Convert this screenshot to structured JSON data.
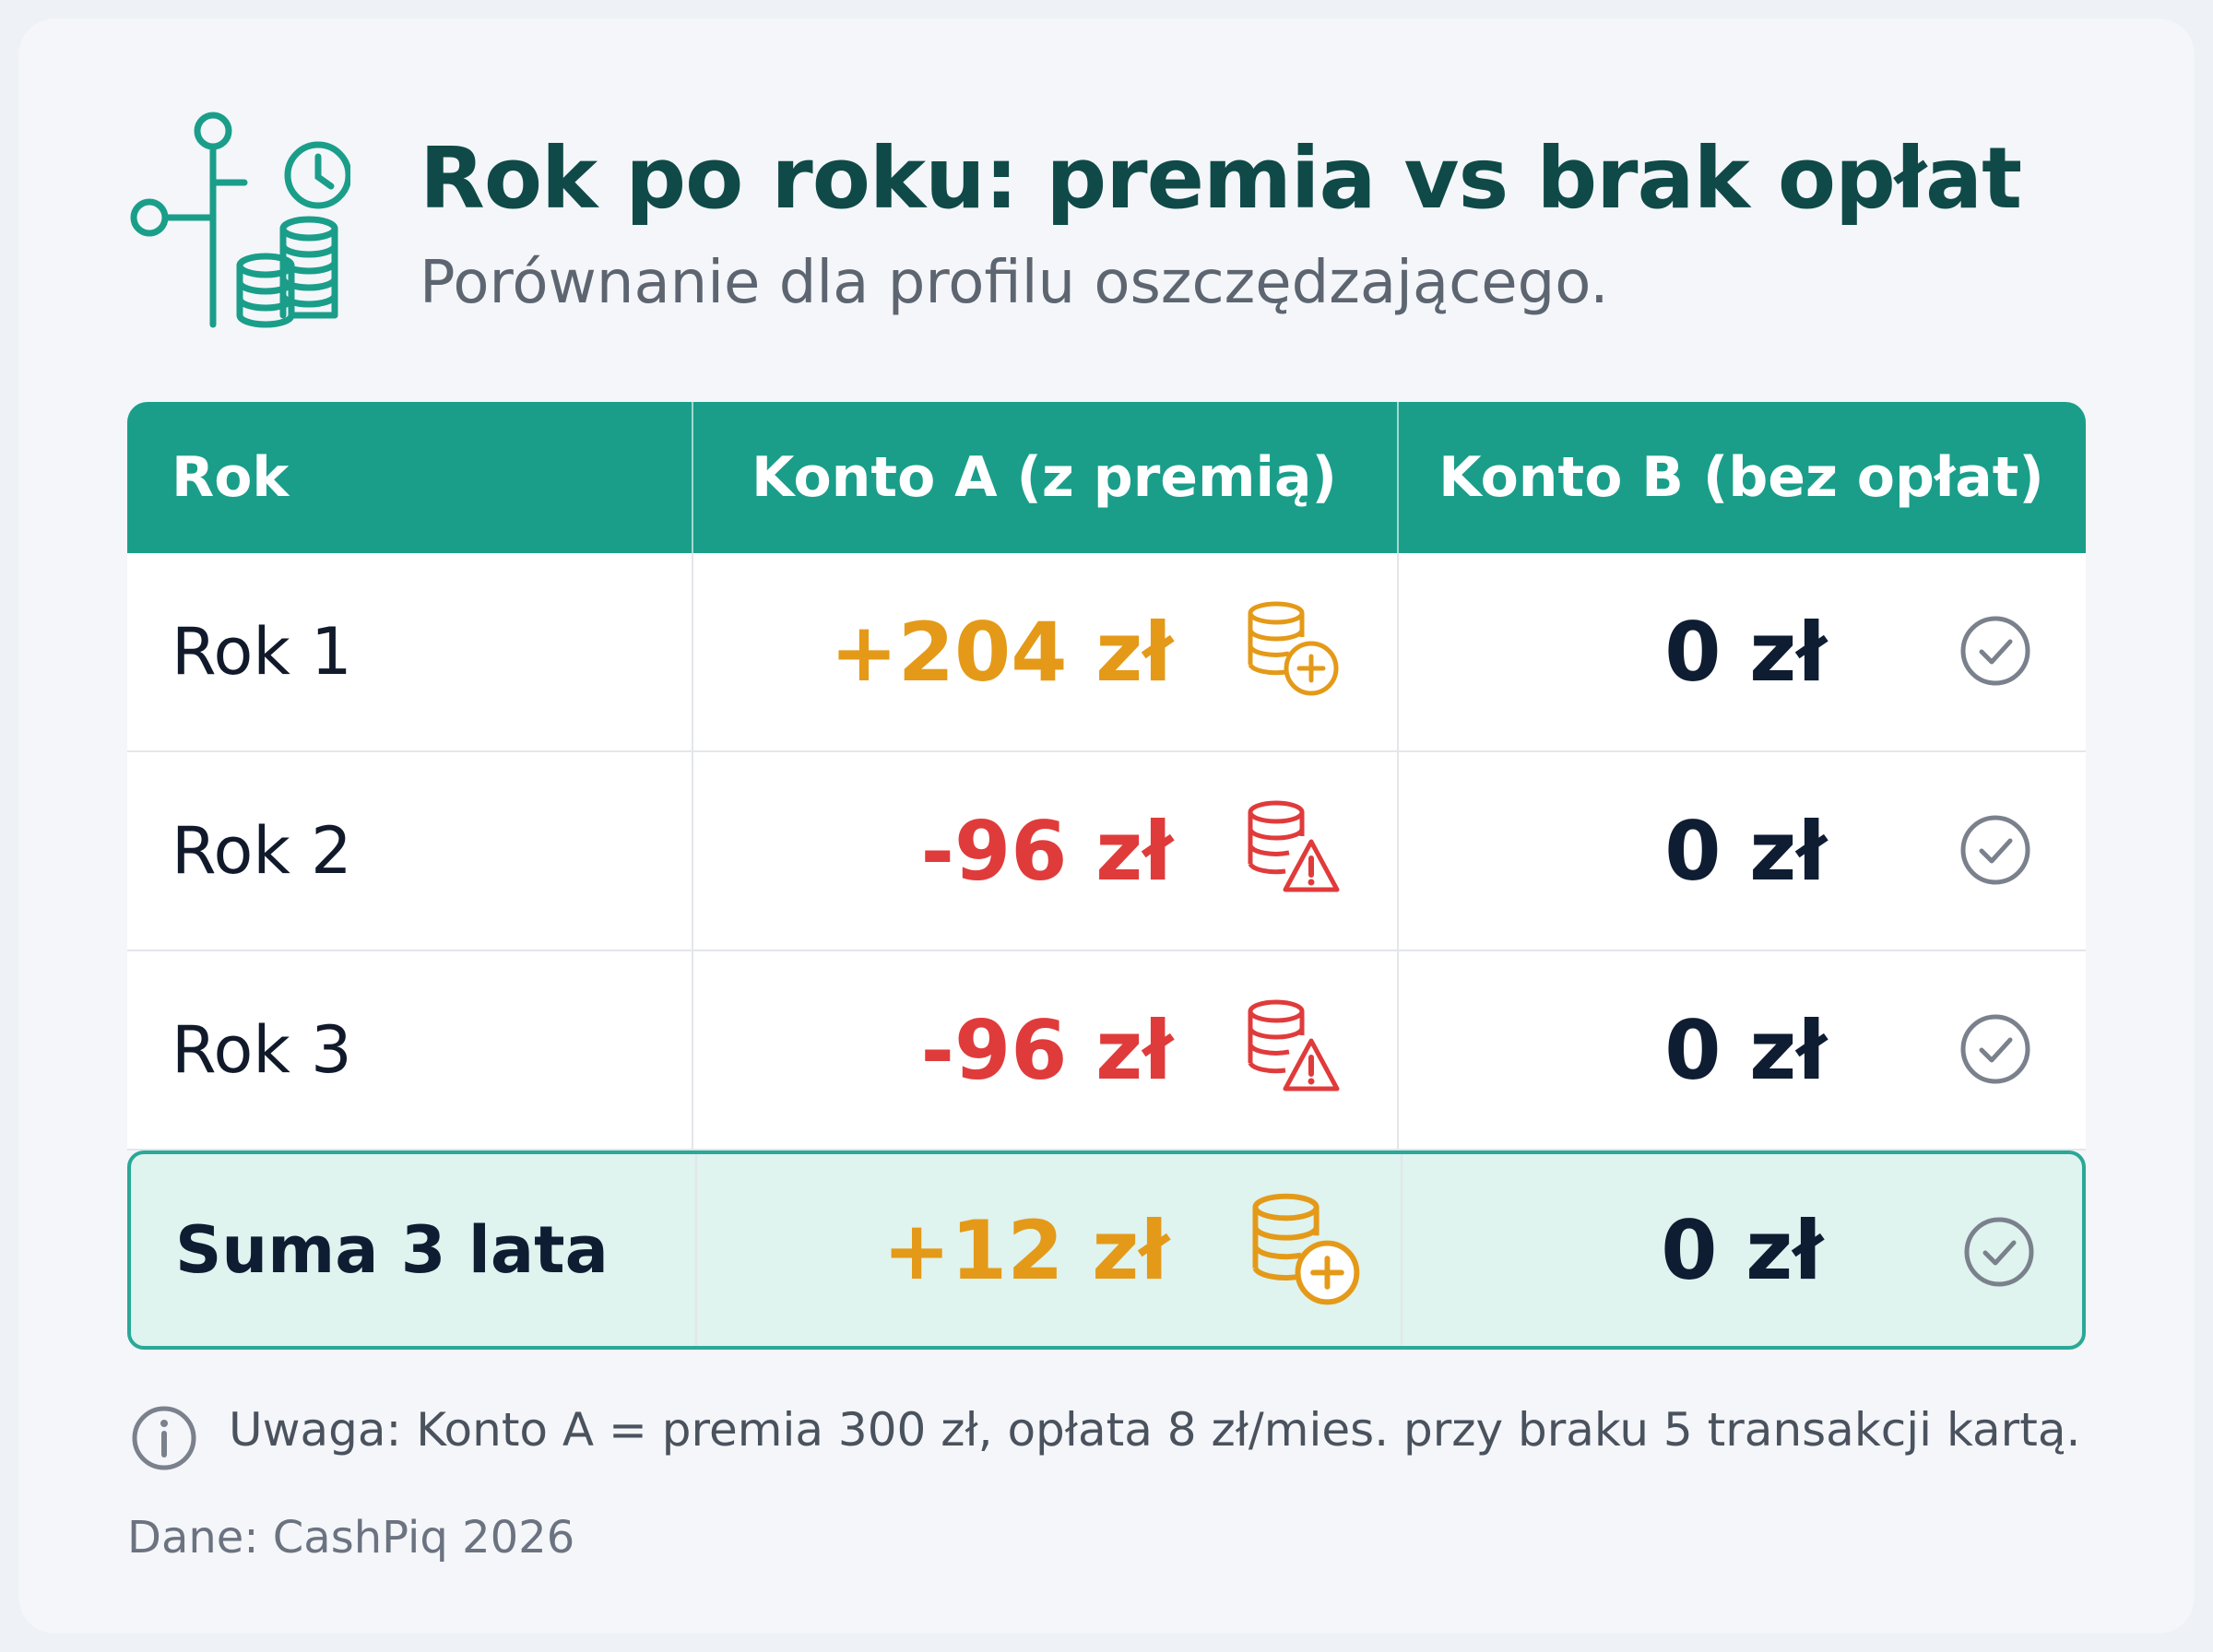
{
  "header": {
    "title": "Rok po roku: premia vs brak opłat",
    "subtitle": "Porównanie dla profilu oszczędzającego."
  },
  "table": {
    "columns": [
      "Rok",
      "Konto A (z premią)",
      "Konto B (bez opłat)"
    ],
    "rows": [
      [
        "Rok 1",
        "+204 zł",
        "0 zł"
      ],
      [
        "Rok 2",
        "-96 zł",
        "0 zł"
      ],
      [
        "Rok 3",
        "-96 zł",
        "0 zł"
      ],
      [
        "Suma 3 lata",
        "+12 zł",
        "0 zł"
      ]
    ]
  },
  "note": "Uwaga: Konto A = premia 300 zł, opłata 8 zł/mies. przy braku 5 transakcji kartą.",
  "source": "Dane: CashPiq 2026"
}
